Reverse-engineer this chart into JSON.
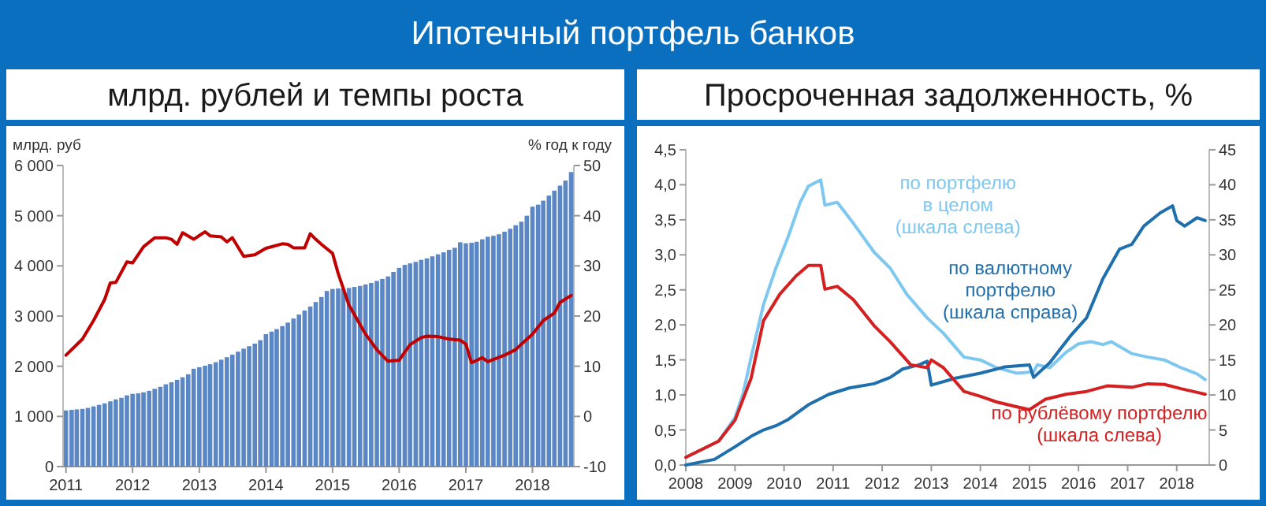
{
  "chart_data": [
    {
      "type": "bar",
      "title": "Ипотечный портфель банков",
      "subtitle": "млрд. рублей и темпы роста",
      "ylabel": "млрд. руб",
      "y2label": "% год к году",
      "xlim": [
        "2010-12-16",
        "2018-08-16"
      ],
      "xticks": [
        "2011",
        "2012",
        "2013",
        "2014",
        "2015",
        "2016",
        "2017",
        "2018"
      ],
      "ylim": [
        0,
        6000
      ],
      "yticks": [
        {
          "value": 0,
          "label": "0"
        },
        {
          "value": 1000,
          "label": "1 000"
        },
        {
          "value": 2000,
          "label": "2 000"
        },
        {
          "value": 3000,
          "label": "3 000"
        },
        {
          "value": 4000,
          "label": "4 000"
        },
        {
          "value": 5000,
          "label": "5 000"
        },
        {
          "value": 6000,
          "label": "6 000"
        }
      ],
      "y2lim": [
        -10,
        50
      ],
      "y2ticks": [
        -10,
        0,
        10,
        20,
        30,
        40,
        50
      ],
      "series": [
        {
          "color": "#5b87c5",
          "x": [
            "2011-01",
            "2011-02",
            "2011-03",
            "2011-04",
            "2011-05",
            "2011-06",
            "2011-07",
            "2011-08",
            "2011-09",
            "2011-10",
            "2011-11",
            "2011-12",
            "2012-01",
            "2012-02",
            "2012-03",
            "2012-04",
            "2012-05",
            "2012-06",
            "2012-07",
            "2012-08",
            "2012-09",
            "2012-10",
            "2012-11",
            "2012-12",
            "2013-01",
            "2013-02",
            "2013-03",
            "2013-04",
            "2013-05",
            "2013-06",
            "2013-07",
            "2013-08",
            "2013-09",
            "2013-10",
            "2013-11",
            "2013-12",
            "2014-01",
            "2014-02",
            "2014-03",
            "2014-04",
            "2014-05",
            "2014-06",
            "2014-07",
            "2014-08",
            "2014-09",
            "2014-10",
            "2014-11",
            "2014-12",
            "2015-01",
            "2015-02",
            "2015-03",
            "2015-04",
            "2015-05",
            "2015-06",
            "2015-07",
            "2015-08",
            "2015-09",
            "2015-10",
            "2015-11",
            "2015-12",
            "2016-01",
            "2016-02",
            "2016-03",
            "2016-04",
            "2016-05",
            "2016-06",
            "2016-07",
            "2016-08",
            "2016-09",
            "2016-10",
            "2016-11",
            "2016-12",
            "2017-01",
            "2017-02",
            "2017-03",
            "2017-04",
            "2017-05",
            "2017-06",
            "2017-07",
            "2017-08",
            "2017-09",
            "2017-10",
            "2017-11",
            "2017-12",
            "2018-01",
            "2018-02",
            "2018-03",
            "2018-04",
            "2018-05",
            "2018-06",
            "2018-07",
            "2018-08"
          ],
          "values": [
            1120,
            1130,
            1140,
            1150,
            1170,
            1200,
            1230,
            1260,
            1300,
            1340,
            1370,
            1420,
            1450,
            1460,
            1480,
            1510,
            1550,
            1590,
            1640,
            1680,
            1730,
            1780,
            1840,
            1950,
            1980,
            2010,
            2040,
            2080,
            2130,
            2180,
            2230,
            2290,
            2350,
            2400,
            2450,
            2520,
            2640,
            2690,
            2740,
            2800,
            2870,
            2950,
            3030,
            3110,
            3190,
            3280,
            3380,
            3500,
            3540,
            3550,
            3550,
            3560,
            3580,
            3600,
            3630,
            3660,
            3700,
            3740,
            3790,
            3880,
            3960,
            4020,
            4050,
            4080,
            4120,
            4150,
            4190,
            4230,
            4270,
            4320,
            4360,
            4470,
            4450,
            4460,
            4480,
            4530,
            4580,
            4600,
            4630,
            4680,
            4740,
            4810,
            4880,
            5000,
            5180,
            5220,
            5300,
            5400,
            5500,
            5600,
            5700,
            5870
          ]
        },
        {
          "type": "line",
          "axis": "y2",
          "color": "#c00000",
          "x": [
            "2011-01",
            "2011-04",
            "2011-06",
            "2011-08",
            "2011-09",
            "2011-10",
            "2011-12",
            "2012-01",
            "2012-03",
            "2012-05",
            "2012-07",
            "2012-08",
            "2012-09",
            "2012-10",
            "2012-12",
            "2013-02",
            "2013-03",
            "2013-05",
            "2013-06",
            "2013-07",
            "2013-09",
            "2013-11",
            "2014-01",
            "2014-04",
            "2014-05",
            "2014-06",
            "2014-08",
            "2014-09",
            "2014-10",
            "2014-11",
            "2015-01",
            "2015-02",
            "2015-04",
            "2015-07",
            "2015-09",
            "2015-11",
            "2016-01",
            "2016-03",
            "2016-05",
            "2016-06",
            "2016-08",
            "2016-10",
            "2016-12",
            "2017-01",
            "2017-02",
            "2017-04",
            "2017-05",
            "2017-08",
            "2017-10",
            "2017-11",
            "2018-01",
            "2018-03",
            "2018-05",
            "2018-06",
            "2018-08"
          ],
          "values": [
            12.2,
            15.4,
            19.1,
            23.3,
            26.6,
            26.7,
            30.8,
            30.6,
            33.8,
            35.6,
            35.6,
            35.3,
            34.3,
            36.6,
            35.3,
            36.8,
            36.0,
            35.8,
            34.8,
            35.6,
            31.9,
            32.2,
            33.5,
            34.4,
            34.3,
            33.6,
            33.6,
            36.4,
            35.3,
            34.3,
            32.5,
            28.5,
            22.2,
            16.4,
            13.3,
            11.0,
            11.2,
            14.3,
            15.7,
            16.0,
            15.9,
            15.4,
            15.2,
            14.4,
            10.7,
            11.7,
            10.9,
            12.2,
            13.3,
            14.4,
            16.4,
            19.1,
            20.6,
            22.7,
            24.1
          ]
        }
      ]
    },
    {
      "type": "line",
      "title": "Просроченная задолженность, %",
      "xlim": [
        "2008-01-01",
        "2018-08-31"
      ],
      "xticks": [
        "2008",
        "2009",
        "2010",
        "2011",
        "2012",
        "2013",
        "2014",
        "2015",
        "2016",
        "2017",
        "2018"
      ],
      "ylim": [
        0,
        4.5
      ],
      "yticks": [
        {
          "value": 0,
          "label": "0,0"
        },
        {
          "value": 0.5,
          "label": "0,5"
        },
        {
          "value": 1,
          "label": "1,0"
        },
        {
          "value": 1.5,
          "label": "1,5"
        },
        {
          "value": 2,
          "label": "2,0"
        },
        {
          "value": 2.5,
          "label": "2,5"
        },
        {
          "value": 3,
          "label": "3,0"
        },
        {
          "value": 3.5,
          "label": "3,5"
        },
        {
          "value": 4,
          "label": "4,0"
        },
        {
          "value": 4.5,
          "label": "4,5"
        }
      ],
      "y2lim": [
        0,
        45
      ],
      "y2ticks": [
        0,
        5,
        10,
        15,
        20,
        25,
        30,
        35,
        40,
        45
      ],
      "series": [
        {
          "name": "по портфелю в целом (шкала слева)",
          "color": "#7ec8f0",
          "x": [
            "2008-01",
            "2008-09",
            "2009-01",
            "2009-03",
            "2009-05",
            "2009-08",
            "2009-11",
            "2010-02",
            "2010-05",
            "2010-07",
            "2010-10",
            "2010-11",
            "2011-02",
            "2011-06",
            "2011-11",
            "2012-03",
            "2012-07",
            "2012-12",
            "2013-04",
            "2013-09",
            "2014-01",
            "2014-05",
            "2014-10",
            "2015-02",
            "2015-03",
            "2015-06",
            "2015-10",
            "2016-01",
            "2016-04",
            "2016-07",
            "2016-09",
            "2017-02",
            "2017-06",
            "2017-10",
            "2018-02",
            "2018-06",
            "2018-08"
          ],
          "values": [
            0.11,
            0.34,
            0.68,
            1.01,
            1.54,
            2.29,
            2.81,
            3.26,
            3.75,
            3.98,
            4.07,
            3.71,
            3.75,
            3.45,
            3.04,
            2.81,
            2.44,
            2.1,
            1.88,
            1.54,
            1.5,
            1.39,
            1.31,
            1.33,
            1.43,
            1.39,
            1.61,
            1.73,
            1.76,
            1.72,
            1.76,
            1.59,
            1.54,
            1.5,
            1.39,
            1.3,
            1.22
          ]
        },
        {
          "name": "по валютному портфелю (шкала справа)",
          "axis": "y2",
          "color": "#1f6fad",
          "x": [
            "2008-01",
            "2008-08",
            "2009-01",
            "2009-05",
            "2009-08",
            "2009-11",
            "2010-02",
            "2010-07",
            "2010-12",
            "2011-05",
            "2011-11",
            "2012-03",
            "2012-06",
            "2012-10",
            "2012-12",
            "2013-01",
            "2013-07",
            "2014-01",
            "2014-07",
            "2015-01",
            "2015-02",
            "2015-06",
            "2015-11",
            "2016-03",
            "2016-07",
            "2016-11",
            "2017-02",
            "2017-05",
            "2017-09",
            "2017-12",
            "2018-01",
            "2018-03",
            "2018-06",
            "2018-08"
          ],
          "values": [
            0,
            0.8,
            2.6,
            4.1,
            5.0,
            5.6,
            6.5,
            8.6,
            10.1,
            11.0,
            11.6,
            12.5,
            13.7,
            14.3,
            14.8,
            11.4,
            12.4,
            13.1,
            14.0,
            14.3,
            12.5,
            14.6,
            18.4,
            21.0,
            26.6,
            30.8,
            31.5,
            34.1,
            36.0,
            37.0,
            34.9,
            34.1,
            35.3,
            34.9
          ]
        },
        {
          "name": "по рублёвому портфелю (шкала слева)",
          "color": "#d42020",
          "x": [
            "2008-01",
            "2008-09",
            "2009-01",
            "2009-05",
            "2009-08",
            "2009-12",
            "2010-04",
            "2010-07",
            "2010-10",
            "2010-11",
            "2011-02",
            "2011-06",
            "2011-11",
            "2012-03",
            "2012-08",
            "2012-12",
            "2013-01",
            "2013-04",
            "2013-09",
            "2014-01",
            "2014-05",
            "2014-10",
            "2015-01",
            "2015-05",
            "2015-10",
            "2016-03",
            "2016-08",
            "2017-02",
            "2017-06",
            "2017-10",
            "2018-02",
            "2018-08"
          ],
          "values": [
            0.11,
            0.34,
            0.64,
            1.24,
            2.06,
            2.44,
            2.7,
            2.85,
            2.85,
            2.51,
            2.55,
            2.36,
            1.99,
            1.76,
            1.43,
            1.39,
            1.5,
            1.39,
            1.05,
            0.98,
            0.9,
            0.83,
            0.79,
            0.94,
            1.01,
            1.05,
            1.13,
            1.11,
            1.16,
            1.15,
            1.09,
            1.01
          ]
        }
      ]
    }
  ]
}
